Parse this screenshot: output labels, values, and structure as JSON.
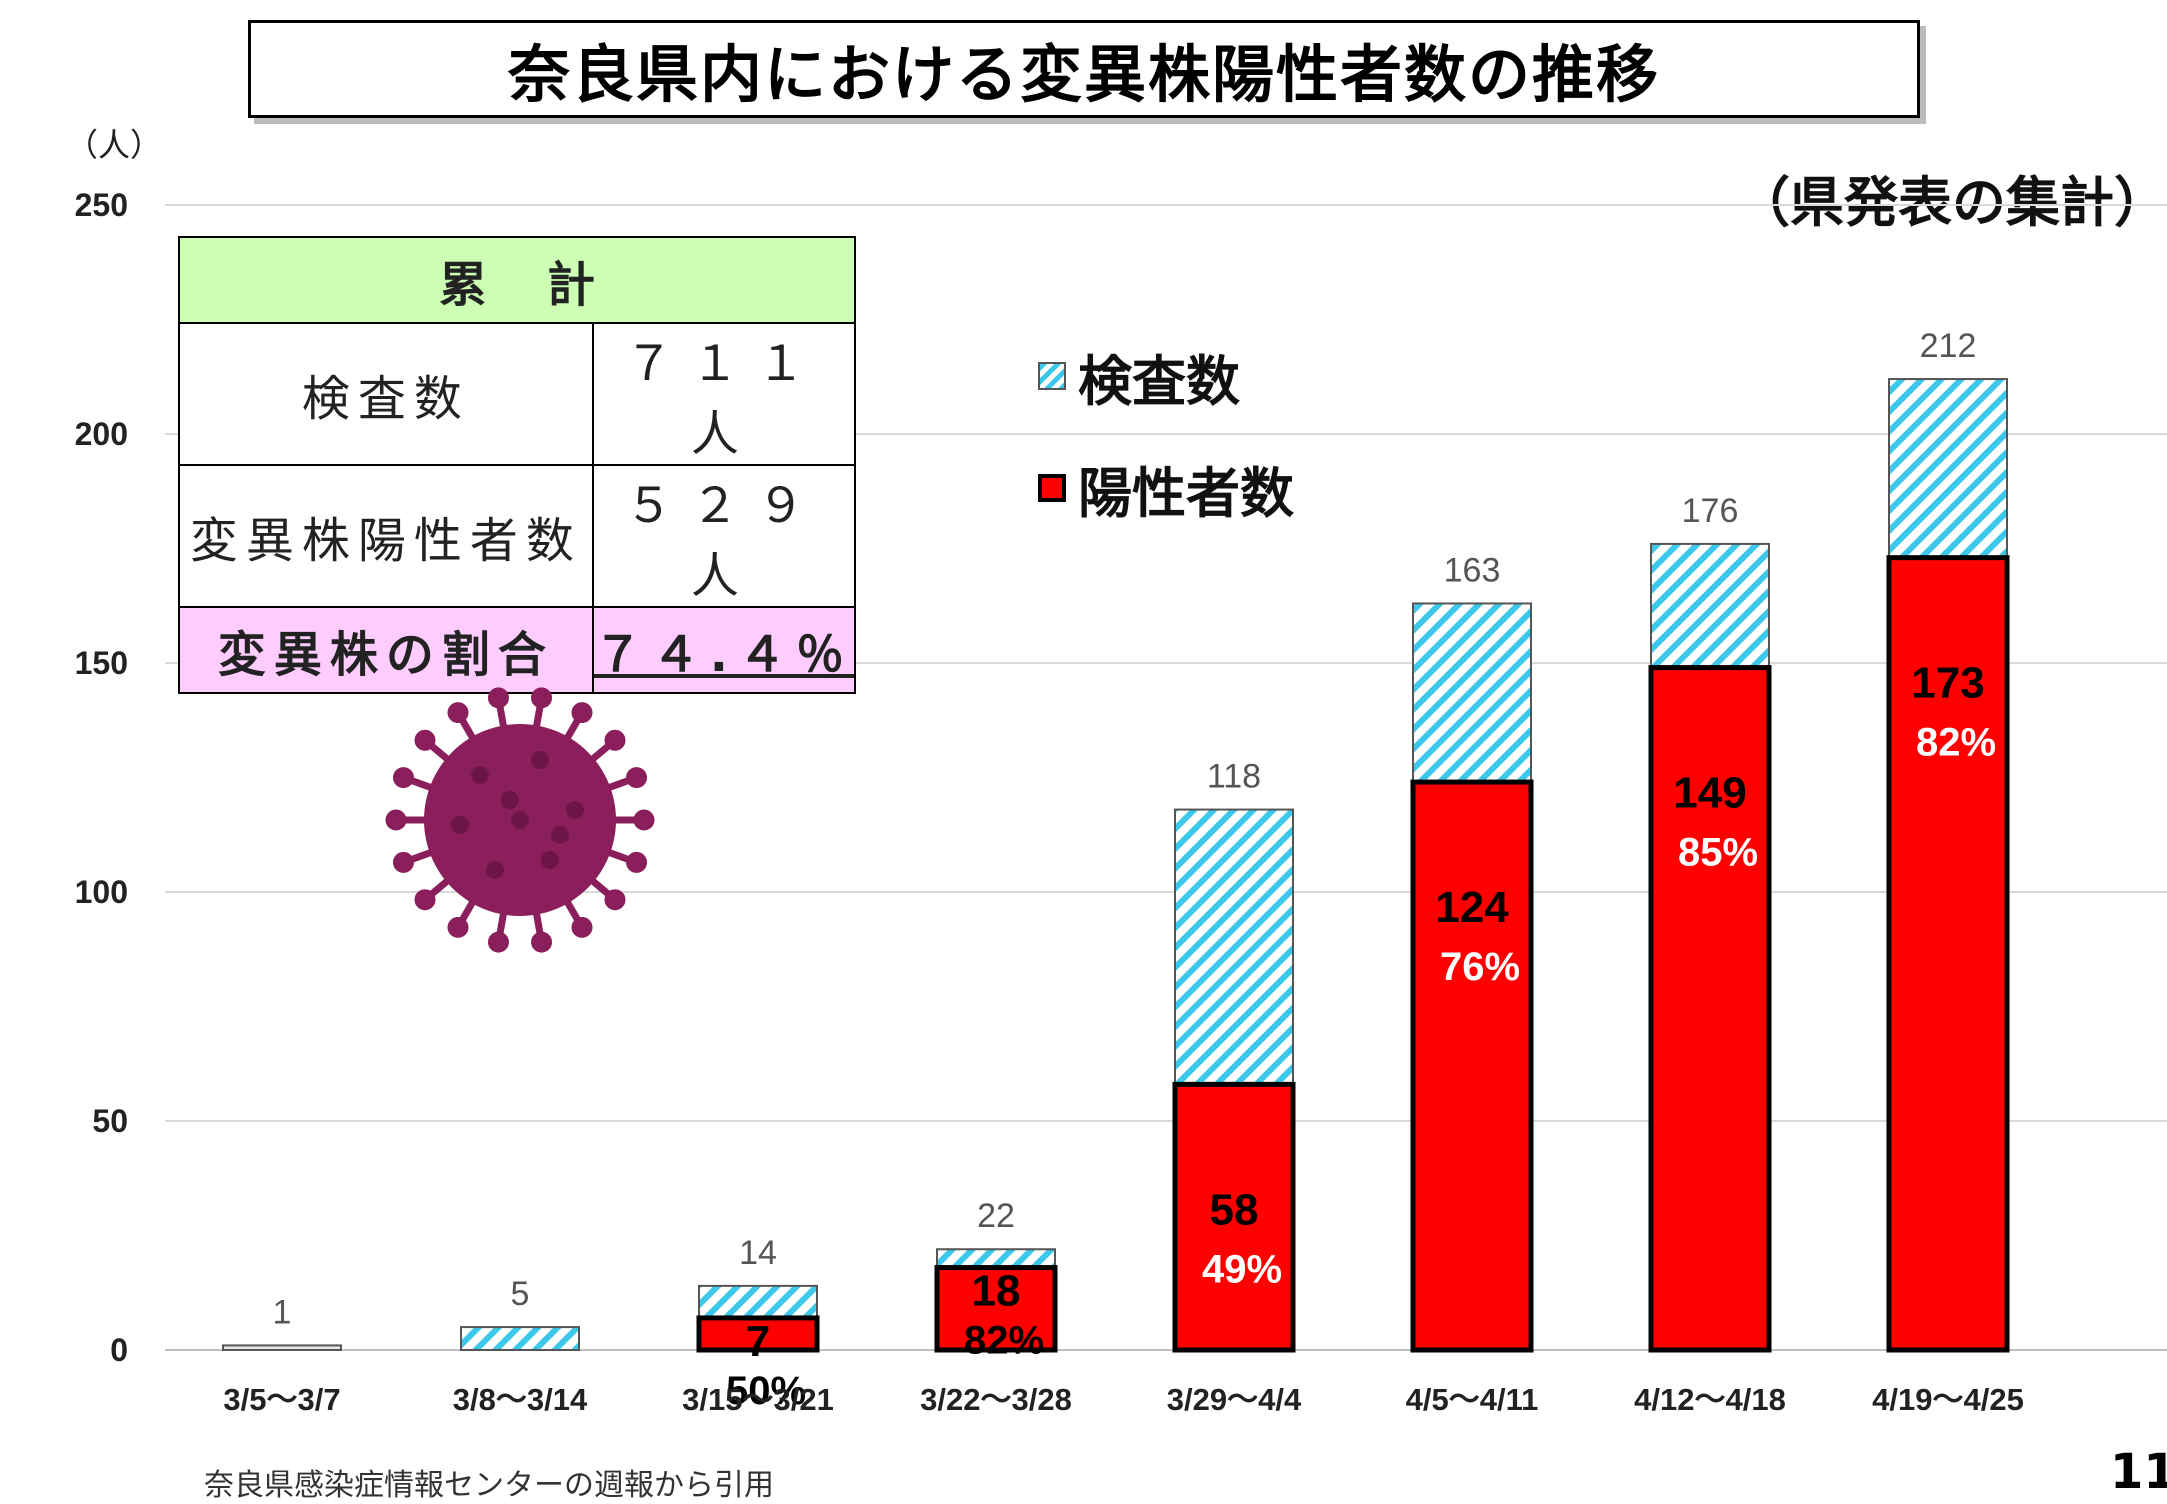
{
  "page": {
    "title": "奈良県内における変異株陽性者数の推移",
    "unit_label": "（人）",
    "source_note": "（県発表の集計）",
    "footnote": "奈良県感染症情報センターの週報から引用",
    "page_number": "11"
  },
  "summary_table": {
    "header": "累計",
    "rows": [
      {
        "label": "検査数",
        "value": "７１１人"
      },
      {
        "label": "変異株陽性者数",
        "value": "５２９人"
      }
    ],
    "rate": {
      "label": "変異株の割合",
      "value": "７４.４％"
    }
  },
  "legend": {
    "tests": "検査数",
    "positives": "陽性者数"
  },
  "colors": {
    "positive_fill": "#ff0000",
    "test_stripe": "#3cc8ea",
    "table_header_bg": "#ccffb3",
    "table_rate_bg": "#ffccff",
    "virus": "#8b1f5c"
  },
  "chart_data": {
    "type": "bar",
    "stacked": "overlay",
    "categories": [
      "3/5～3/7",
      "3/8～3/14",
      "3/15～3/21",
      "3/22～3/28",
      "3/29～4/4",
      "4/5～4/11",
      "4/12～4/18",
      "4/19～4/25"
    ],
    "series": [
      {
        "name": "検査数",
        "values": [
          1,
          5,
          14,
          22,
          118,
          163,
          176,
          212
        ],
        "labels": [
          "1",
          "5",
          "14",
          "22",
          "118",
          "163",
          "176",
          "212"
        ]
      },
      {
        "name": "陽性者数",
        "values": [
          0,
          0,
          7,
          18,
          58,
          124,
          149,
          173
        ],
        "labels": [
          "",
          "",
          "7",
          "18",
          "58",
          "124",
          "149",
          "173"
        ]
      }
    ],
    "percentages": [
      "",
      "",
      "50%",
      "82%",
      "49%",
      "76%",
      "85%",
      "82%"
    ],
    "y_ticks": [
      "0",
      "50",
      "100",
      "150",
      "200",
      "250"
    ],
    "ylim": [
      0,
      250
    ],
    "grid": true,
    "legend_position": "top-center"
  }
}
